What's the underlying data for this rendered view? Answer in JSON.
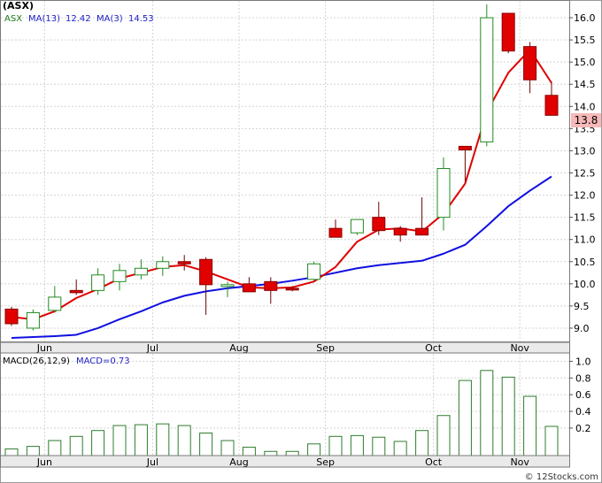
{
  "colors": {
    "up_candle": "#228b22",
    "down_candle": "#e00000",
    "ma13": "#1010e0",
    "ma3": "#e00000",
    "macd_bar": "#2e7d2e",
    "last_price_bg": "#f6b8b8",
    "axis_bg": "#eaeaea",
    "legend_symbol": "#1a7a1a",
    "legend_text": "#2020c8"
  },
  "chart_data": [
    {
      "type": "candlestick",
      "symbol": "(ASX)",
      "legend": {
        "ticker": "ASX",
        "ma13_label": "MA(13)",
        "ma13_value": "12.42",
        "ma3_label": "MA(3)",
        "ma3_value": "14.53"
      },
      "last_price": "13.8",
      "ylim": [
        8.7,
        16.4
      ],
      "yticks": [
        9.0,
        9.5,
        10.0,
        10.5,
        11.0,
        11.5,
        12.0,
        12.5,
        13.0,
        13.5,
        14.0,
        14.5,
        15.0,
        15.5,
        16.0
      ],
      "grid": true,
      "months": [
        {
          "label": "Jun",
          "week": 1
        },
        {
          "label": "Jul",
          "week": 6
        },
        {
          "label": "Aug",
          "week": 10
        },
        {
          "label": "Sep",
          "week": 14
        },
        {
          "label": "Oct",
          "week": 19
        },
        {
          "label": "Nov",
          "week": 23
        }
      ],
      "candles": [
        {
          "o": 9.43,
          "h": 9.48,
          "l": 9.05,
          "c": 9.1
        },
        {
          "o": 9.0,
          "h": 9.42,
          "l": 8.95,
          "c": 9.35
        },
        {
          "o": 9.4,
          "h": 9.95,
          "l": 9.35,
          "c": 9.7
        },
        {
          "o": 9.85,
          "h": 10.1,
          "l": 9.75,
          "c": 9.8
        },
        {
          "o": 9.85,
          "h": 10.35,
          "l": 9.75,
          "c": 10.2
        },
        {
          "o": 10.05,
          "h": 10.45,
          "l": 9.85,
          "c": 10.3
        },
        {
          "o": 10.2,
          "h": 10.55,
          "l": 10.1,
          "c": 10.35
        },
        {
          "o": 10.35,
          "h": 10.62,
          "l": 10.18,
          "c": 10.5
        },
        {
          "o": 10.5,
          "h": 10.65,
          "l": 10.3,
          "c": 10.45
        },
        {
          "o": 10.55,
          "h": 10.6,
          "l": 9.3,
          "c": 9.98
        },
        {
          "o": 9.95,
          "h": 10.05,
          "l": 9.7,
          "c": 9.98
        },
        {
          "o": 10.0,
          "h": 10.15,
          "l": 9.85,
          "c": 9.82
        },
        {
          "o": 10.05,
          "h": 10.15,
          "l": 9.55,
          "c": 9.85
        },
        {
          "o": 9.9,
          "h": 9.95,
          "l": 9.83,
          "c": 9.88
        },
        {
          "o": 10.1,
          "h": 10.5,
          "l": 10.05,
          "c": 10.45
        },
        {
          "o": 11.25,
          "h": 11.45,
          "l": 11.05,
          "c": 11.05
        },
        {
          "o": 11.15,
          "h": 11.45,
          "l": 11.1,
          "c": 11.45
        },
        {
          "o": 11.5,
          "h": 11.85,
          "l": 11.1,
          "c": 11.2
        },
        {
          "o": 11.25,
          "h": 11.3,
          "l": 10.95,
          "c": 11.1
        },
        {
          "o": 11.25,
          "h": 11.95,
          "l": 11.1,
          "c": 11.1
        },
        {
          "o": 11.5,
          "h": 12.85,
          "l": 11.2,
          "c": 12.6
        },
        {
          "o": 13.1,
          "h": 13.1,
          "l": 12.3,
          "c": 13.02
        },
        {
          "o": 13.2,
          "h": 16.3,
          "l": 13.1,
          "c": 16.0
        },
        {
          "o": 16.1,
          "h": 16.1,
          "l": 15.2,
          "c": 15.25
        },
        {
          "o": 15.35,
          "h": 15.45,
          "l": 14.3,
          "c": 14.6
        },
        {
          "o": 14.25,
          "h": 14.55,
          "l": 13.8,
          "c": 13.8
        }
      ],
      "ma13": [
        8.78,
        8.8,
        8.82,
        8.85,
        9.0,
        9.2,
        9.38,
        9.58,
        9.73,
        9.83,
        9.9,
        9.95,
        10.0,
        10.07,
        10.15,
        10.25,
        10.35,
        10.42,
        10.47,
        10.52,
        10.68,
        10.88,
        11.3,
        11.75,
        12.1,
        12.42
      ],
      "ma3": [
        9.25,
        9.2,
        9.38,
        9.68,
        9.88,
        10.12,
        10.25,
        10.38,
        10.42,
        10.28,
        10.1,
        9.92,
        9.9,
        9.92,
        10.05,
        10.38,
        10.95,
        11.22,
        11.25,
        11.18,
        11.58,
        12.26,
        13.87,
        14.76,
        15.28,
        14.53
      ]
    },
    {
      "type": "bar",
      "label": "MACD(26,12,9)",
      "value_label": "MACD=0.73",
      "ylim": [
        -0.13,
        1.1
      ],
      "yticks": [
        0.2,
        0.4,
        0.6,
        0.8,
        1.0
      ],
      "values": [
        -0.05,
        -0.02,
        0.05,
        0.1,
        0.17,
        0.23,
        0.24,
        0.25,
        0.23,
        0.14,
        0.05,
        -0.03,
        -0.08,
        -0.08,
        0.01,
        0.1,
        0.11,
        0.09,
        0.04,
        0.17,
        0.35,
        0.77,
        0.89,
        0.81,
        0.58,
        0.22
      ]
    }
  ],
  "watermark": "© 12Stocks.com"
}
